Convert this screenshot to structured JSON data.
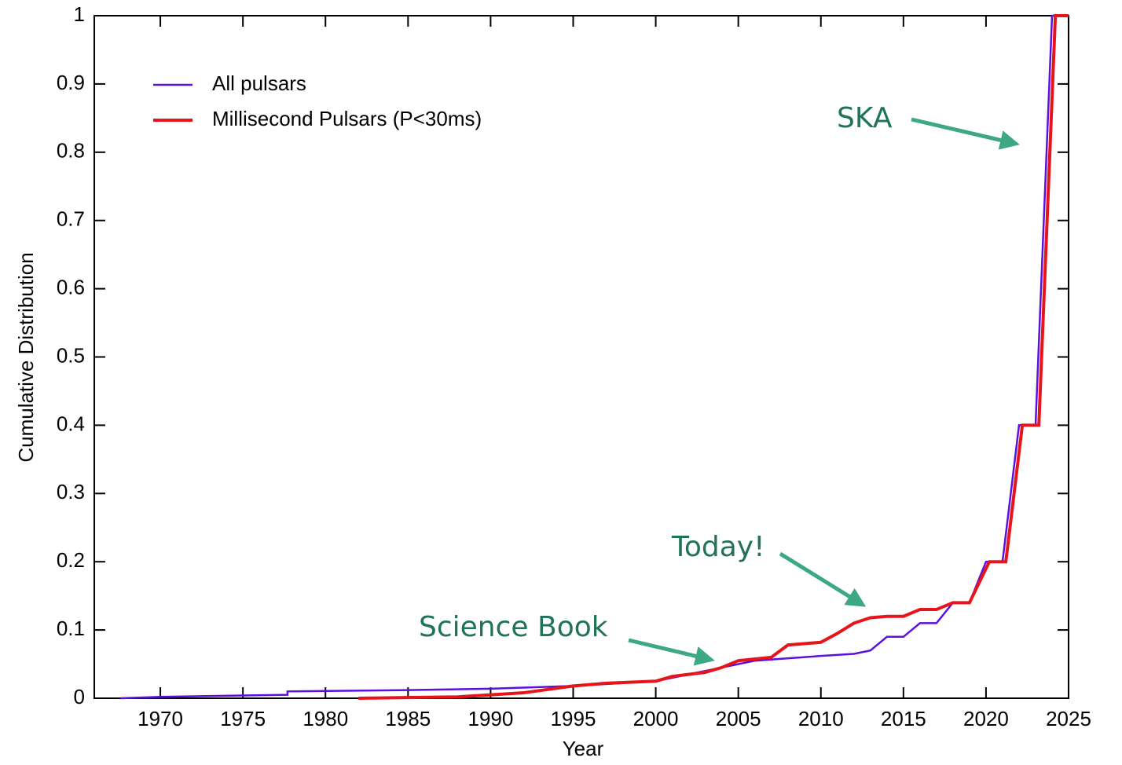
{
  "chart_data": {
    "type": "line",
    "xlabel": "Year",
    "ylabel": "Cumulative Distribution",
    "xlim": [
      1966,
      2025
    ],
    "xticks": [
      1970,
      1975,
      1980,
      1985,
      1990,
      1995,
      2000,
      2005,
      2010,
      2015,
      2020,
      2025
    ],
    "ylim": [
      0,
      1
    ],
    "yticks": [
      0,
      0.1,
      0.2,
      0.3,
      0.4,
      0.5,
      0.6,
      0.7,
      0.8,
      0.9,
      1
    ],
    "legend": "upper left",
    "series": [
      {
        "name": "All pulsars",
        "color": "#5b10e0",
        "x": [
          1967.6,
          1970,
          1975,
          1977.7,
          1977.7,
          1985,
          1990,
          1995,
          2000,
          2004,
          2006,
          2010,
          2012,
          2013,
          2014,
          2015,
          2016,
          2017,
          2018,
          2019,
          2020,
          2021,
          2022,
          2023,
          2024,
          2025
        ],
        "values": [
          0,
          0.002,
          0.004,
          0.005,
          0.01,
          0.012,
          0.014,
          0.018,
          0.025,
          0.045,
          0.055,
          0.062,
          0.065,
          0.07,
          0.09,
          0.09,
          0.11,
          0.11,
          0.14,
          0.14,
          0.2,
          0.2,
          0.4,
          0.4,
          1,
          1
        ]
      },
      {
        "name": "Millisecond Pulsars (P<30ms)",
        "color": "#e8141c",
        "x": [
          1982,
          1988,
          1992,
          1995,
          1997,
          2000,
          2001,
          2003,
          2004,
          2005,
          2007,
          2008,
          2010,
          2011,
          2012,
          2013,
          2014,
          2015,
          2016,
          2017,
          2018,
          2019,
          2020.2,
          2021.2,
          2022.2,
          2023.2,
          2024.2,
          2025
        ],
        "values": [
          0,
          0.002,
          0.008,
          0.018,
          0.022,
          0.025,
          0.032,
          0.038,
          0.045,
          0.055,
          0.06,
          0.078,
          0.082,
          0.095,
          0.11,
          0.118,
          0.12,
          0.12,
          0.13,
          0.13,
          0.14,
          0.14,
          0.2,
          0.2,
          0.4,
          0.4,
          1,
          1
        ]
      }
    ],
    "annotations": [
      "SKA",
      "Today!",
      "Science Book"
    ]
  }
}
